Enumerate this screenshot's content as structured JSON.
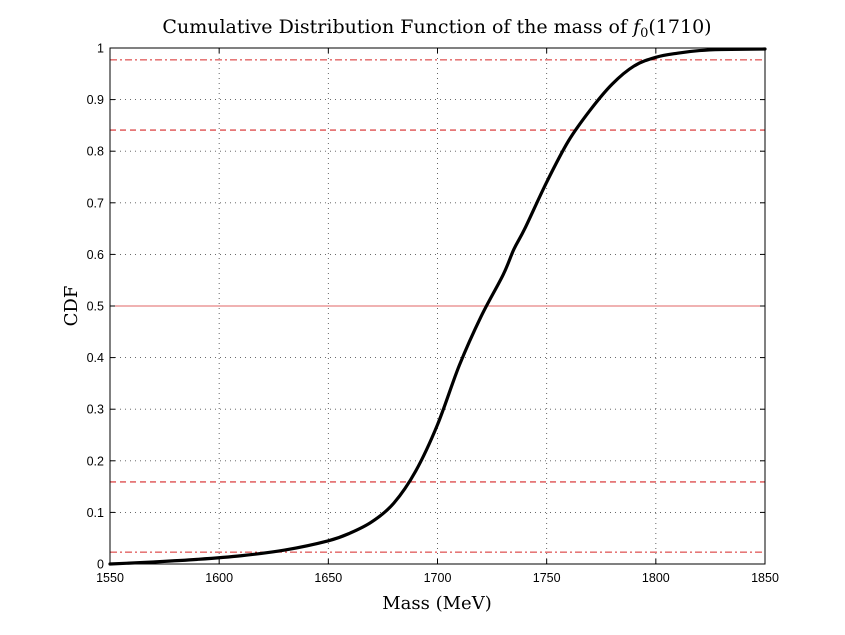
{
  "chart_data": {
    "type": "line",
    "title": "Cumulative Distribution Function of the mass of",
    "title_symbol": "f",
    "title_subscript": "0",
    "title_suffix": "(1710)",
    "xlabel": "Mass (MeV)",
    "ylabel": "CDF",
    "xlim": [
      1550,
      1850
    ],
    "ylim": [
      0,
      1
    ],
    "xticks": [
      1550,
      1600,
      1650,
      1700,
      1750,
      1800,
      1850
    ],
    "yticks": [
      0,
      0.1,
      0.2,
      0.3,
      0.4,
      0.5,
      0.6,
      0.7,
      0.8,
      0.9,
      1
    ],
    "ytick_labels": [
      "0",
      "0.1",
      "0.2",
      "0.3",
      "0.4",
      "0.5",
      "0.6",
      "0.7",
      "0.8",
      "0.9",
      "1"
    ],
    "grid": true,
    "series": [
      {
        "name": "CDF",
        "color": "#000000",
        "x": [
          1550,
          1570,
          1590,
          1610,
          1630,
          1650,
          1660,
          1670,
          1680,
          1690,
          1700,
          1710,
          1720,
          1730,
          1735,
          1740,
          1750,
          1760,
          1770,
          1780,
          1790,
          1800,
          1810,
          1820,
          1830,
          1850
        ],
        "y": [
          0.0,
          0.004,
          0.009,
          0.016,
          0.027,
          0.045,
          0.06,
          0.082,
          0.118,
          0.18,
          0.27,
          0.385,
          0.48,
          0.56,
          0.61,
          0.65,
          0.74,
          0.82,
          0.88,
          0.93,
          0.965,
          0.982,
          0.99,
          0.995,
          0.997,
          0.998
        ]
      }
    ],
    "reference_lines": [
      {
        "name": "median",
        "y": 0.5,
        "style": "solid",
        "color": "#e06666"
      },
      {
        "name": "plus-1-sigma",
        "y": 0.841,
        "style": "dashed",
        "color": "#d62728"
      },
      {
        "name": "minus-1-sigma",
        "y": 0.159,
        "style": "dashed",
        "color": "#d62728"
      },
      {
        "name": "plus-2-sigma",
        "y": 0.977,
        "style": "dashdot",
        "color": "#d62728"
      },
      {
        "name": "minus-2-sigma",
        "y": 0.023,
        "style": "dashdot",
        "color": "#d62728"
      }
    ]
  }
}
